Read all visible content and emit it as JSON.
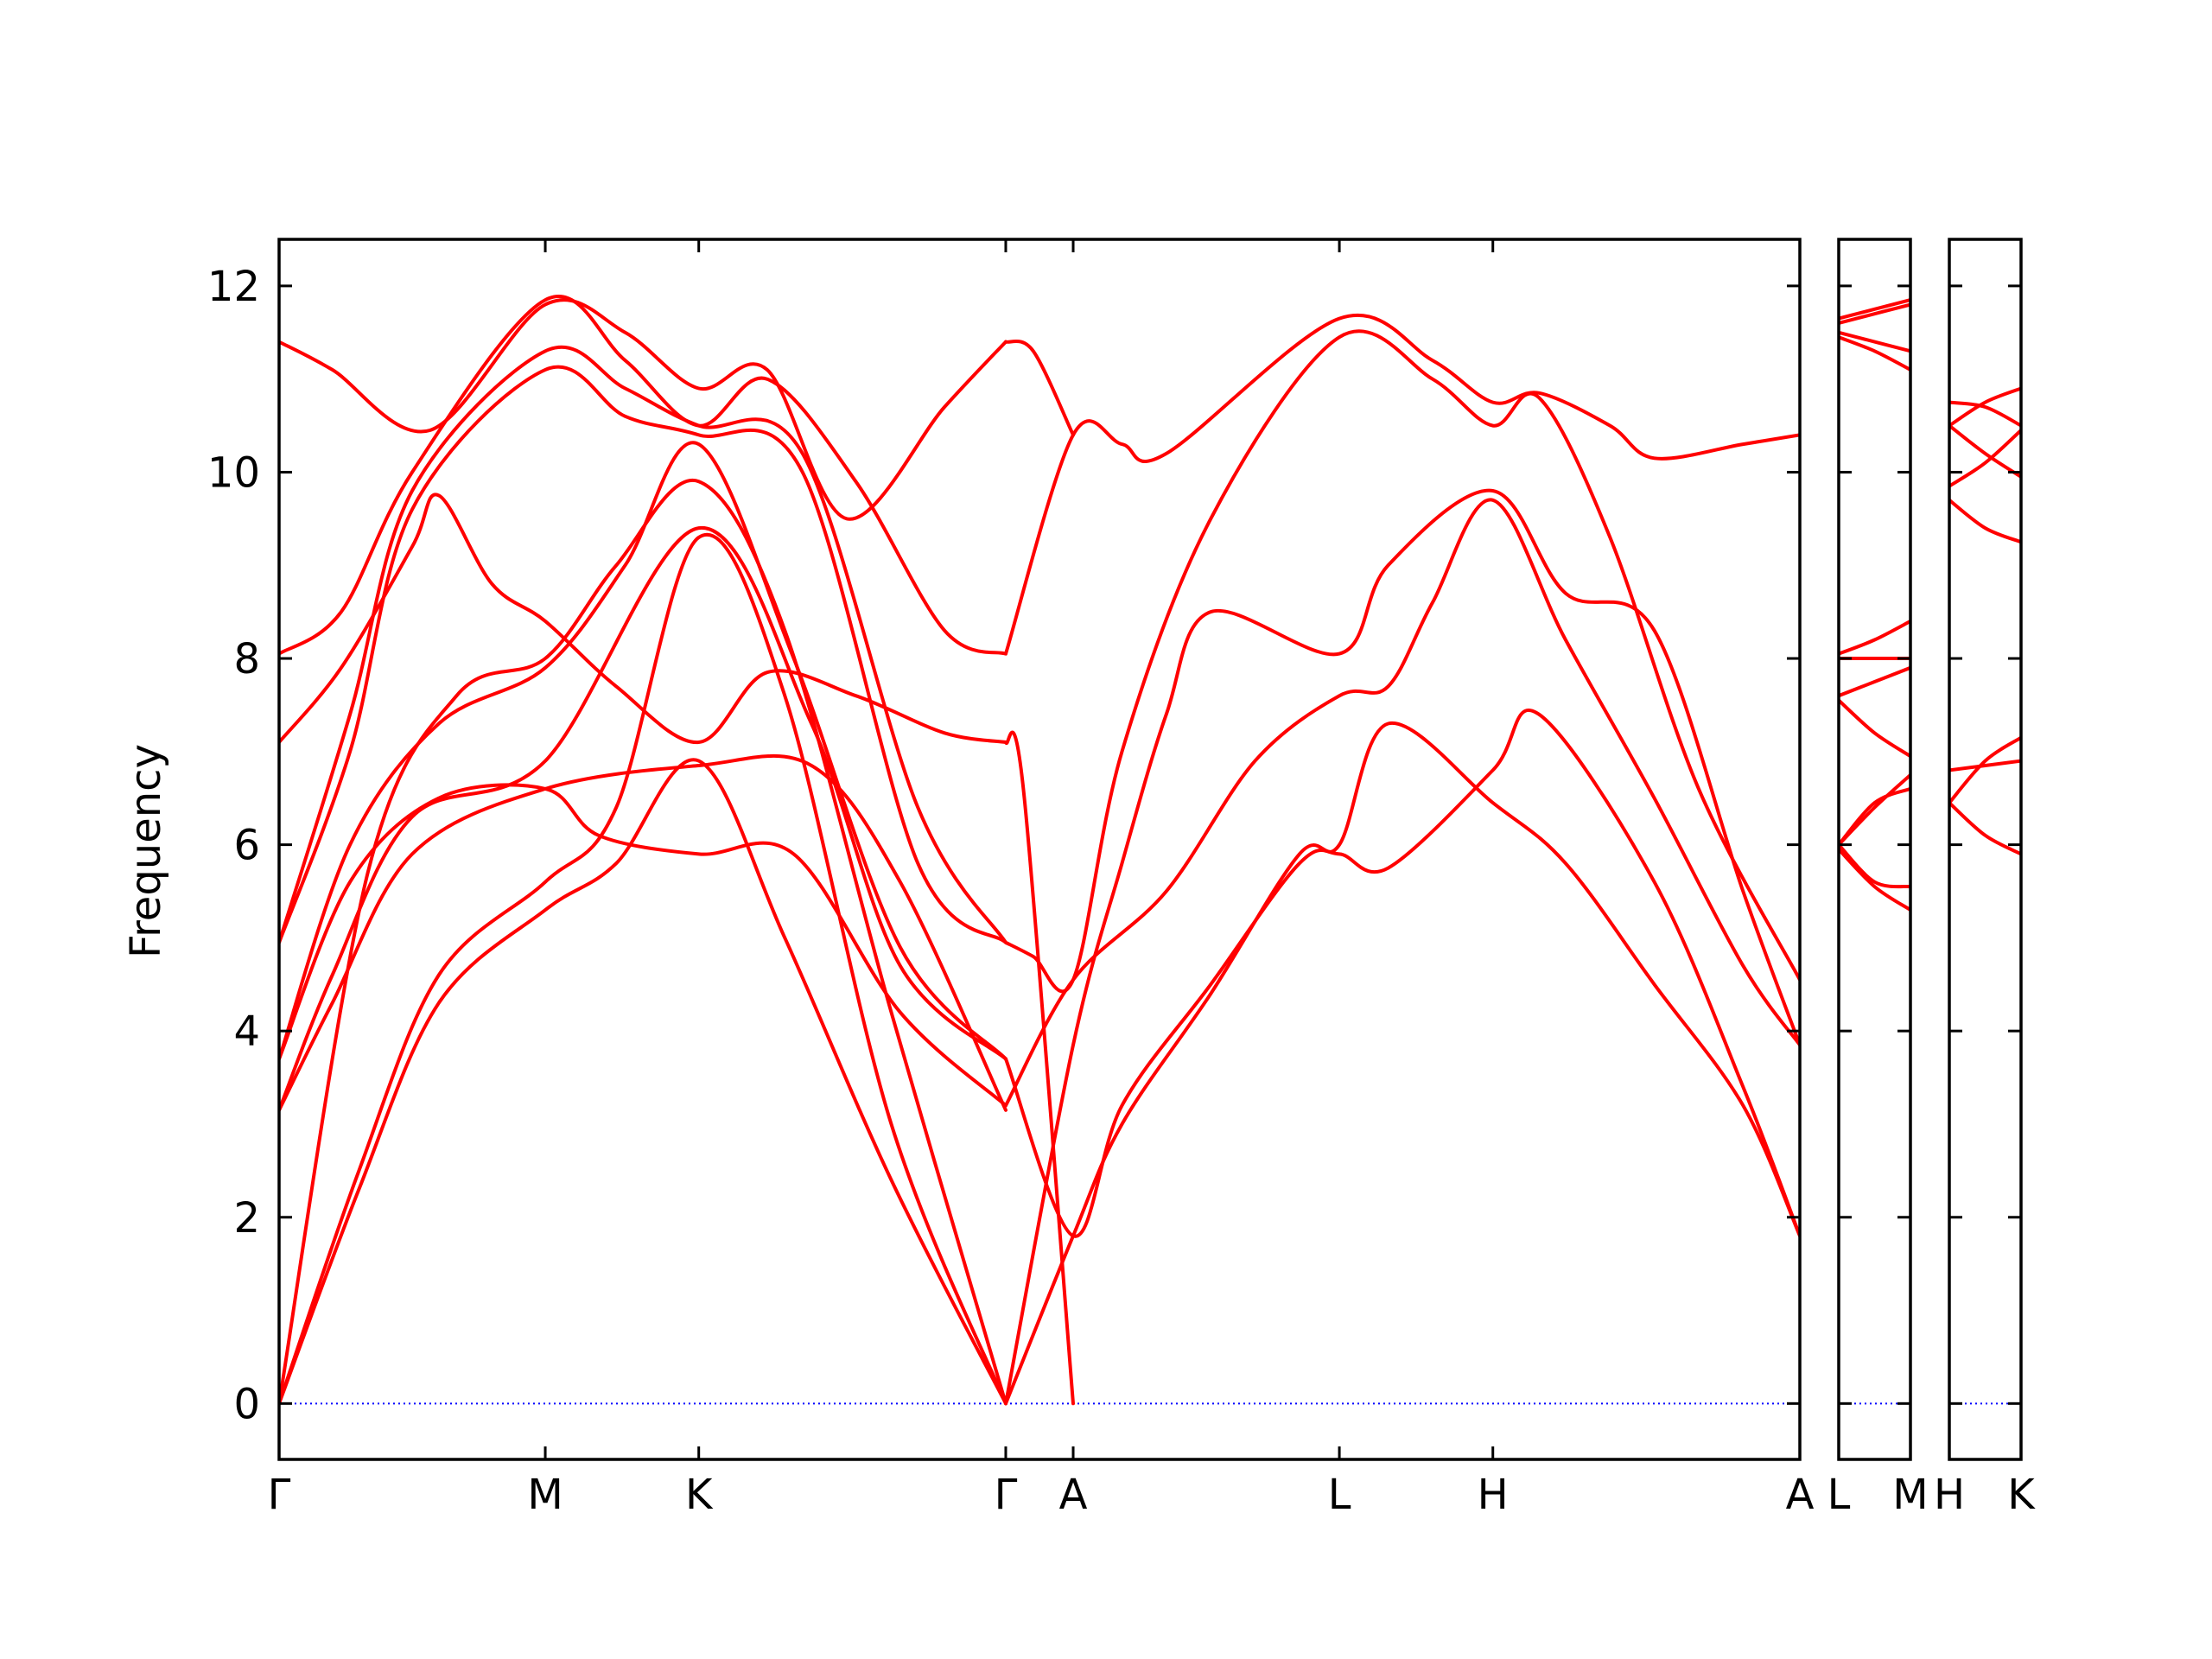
{
  "chart_data": {
    "type": "line",
    "title": "",
    "ylabel": "Frequency",
    "xlabel": "",
    "ylim": [
      -0.6,
      12.5
    ],
    "yticks": [
      0,
      2,
      4,
      6,
      8,
      10,
      12
    ],
    "grid": false,
    "line_color": "#ff0000",
    "zero_line_color": "#0000ff",
    "panels": [
      {
        "id": "main",
        "labels": [
          "Γ",
          "M",
          "K",
          "Γ",
          "A",
          "L",
          "H",
          "A"
        ],
        "ticks": [
          0,
          0.3,
          0.473,
          0.819,
          0.895,
          1.195,
          1.368,
          1.714
        ],
        "xlim": [
          0,
          1.714
        ],
        "series": [
          {
            "x": [
              0,
              0.09,
              0.18,
              0.3,
              0.38,
              0.473,
              0.57,
              0.69,
              0.819
            ],
            "y": [
              0,
              2.3,
              4.3,
              5.3,
              5.8,
              6.9,
              5.0,
              2.4,
              0
            ]
          },
          {
            "x": [
              0,
              0.09,
              0.18,
              0.3,
              0.38,
              0.473,
              0.57,
              0.69,
              0.819
            ],
            "y": [
              0,
              2.5,
              4.6,
              5.6,
              6.4,
              9.3,
              7.6,
              3.0,
              0
            ]
          },
          {
            "x": [
              0,
              0.1,
              0.2,
              0.3,
              0.38,
              0.473,
              0.57,
              0.69,
              0.819
            ],
            "y": [
              0,
              5.7,
              7.6,
              8.0,
              9.0,
              9.9,
              8.3,
              4.2,
              0
            ]
          },
          {
            "x": [
              0,
              0.06,
              0.15,
              0.3,
              0.473,
              0.6,
              0.7,
              0.819
            ],
            "y": [
              3.15,
              4.3,
              5.9,
              6.6,
              6.85,
              6.85,
              5.6,
              3.15
            ]
          },
          {
            "x": [
              0,
              0.06,
              0.15,
              0.3,
              0.473,
              0.6,
              0.7,
              0.819
            ],
            "y": [
              3.15,
              4.6,
              6.3,
              6.9,
              9.4,
              7.3,
              4.7,
              3.7
            ]
          },
          {
            "x": [
              0,
              0.08,
              0.18,
              0.3,
              0.36,
              0.473,
              0.58,
              0.7,
              0.819
            ],
            "y": [
              3.7,
              5.6,
              6.5,
              6.6,
              6.1,
              5.9,
              5.9,
              4.2,
              3.2
            ]
          },
          {
            "x": [
              0,
              0.08,
              0.18,
              0.3,
              0.39,
              0.473,
              0.58,
              0.7,
              0.819
            ],
            "y": [
              3.7,
              6.0,
              7.3,
              7.9,
              9.0,
              10.3,
              8.0,
              4.9,
              3.7
            ]
          },
          {
            "x": [
              0,
              0.08,
              0.15,
              0.3,
              0.39,
              0.473,
              0.59,
              0.72,
              0.819
            ],
            "y": [
              4.95,
              7.0,
              9.6,
              11.1,
              10.6,
              10.4,
              10.0,
              5.8,
              4.95
            ]
          },
          {
            "x": [
              0,
              0.08,
              0.15,
              0.3,
              0.39,
              0.473,
              0.59,
              0.72,
              0.819
            ],
            "y": [
              4.95,
              7.4,
              9.8,
              11.3,
              10.9,
              10.5,
              10.2,
              6.4,
              4.95
            ]
          },
          {
            "x": [
              0,
              0.07,
              0.15,
              0.18,
              0.24,
              0.3,
              0.38,
              0.473,
              0.55,
              0.65,
              0.75,
              0.819
            ],
            "y": [
              7.1,
              7.9,
              9.2,
              9.75,
              8.8,
              8.4,
              7.7,
              7.1,
              7.85,
              7.6,
              7.2,
              7.1
            ]
          },
          {
            "x": [
              0,
              0.07,
              0.15,
              0.3,
              0.39,
              0.473,
              0.55,
              0.65,
              0.75,
              0.819
            ],
            "y": [
              8.05,
              8.5,
              10.0,
              11.85,
              11.2,
              10.5,
              11.0,
              9.9,
              8.3,
              8.05
            ]
          },
          {
            "x": [
              0,
              0.06,
              0.17,
              0.3,
              0.39,
              0.473,
              0.55,
              0.64,
              0.75,
              0.819
            ],
            "y": [
              11.4,
              11.1,
              10.45,
              11.8,
              11.5,
              10.9,
              11.1,
              9.5,
              10.7,
              11.4
            ]
          },
          {
            "x": [
              0.819,
              0.895,
              0.95,
              1.05,
              1.15,
              1.195,
              1.25,
              1.368,
              1.45,
              1.55,
              1.65,
              1.714
            ],
            "y": [
              0,
              1.8,
              3.0,
              4.4,
              5.9,
              6.0,
              7.3,
              6.45,
              5.8,
              4.5,
              3.2,
              1.8
            ]
          },
          {
            "x": [
              0.819,
              0.895,
              0.95,
              1.05,
              1.15,
              1.195,
              1.25,
              1.368,
              1.42,
              1.55,
              1.65,
              1.714
            ],
            "y": [
              3.7,
              1.8,
              3.2,
              4.5,
              5.8,
              5.9,
              5.75,
              6.8,
              7.4,
              5.6,
              3.4,
              1.8
            ]
          },
          {
            "x": [
              0.819,
              0.895,
              1.0,
              1.1,
              1.195,
              1.25,
              1.3,
              1.368,
              1.45,
              1.55,
              1.65,
              1.714
            ],
            "y": [
              3.2,
              4.55,
              5.5,
              6.9,
              7.6,
              7.7,
              8.6,
              9.7,
              8.2,
              6.5,
              4.7,
              3.85
            ]
          },
          {
            "x": [
              0.819,
              0.895,
              0.95,
              1.0,
              1.05,
              1.195,
              1.25,
              1.368,
              1.45,
              1.55,
              1.65,
              1.714
            ],
            "y": [
              0,
              3.85,
              5.8,
              7.4,
              8.5,
              8.05,
              9.0,
              9.8,
              8.7,
              8.3,
              5.5,
              3.85
            ]
          },
          {
            "x": [
              0.819,
              0.85,
              0.895,
              0.95,
              1.05,
              1.195,
              1.3,
              1.368,
              1.42,
              1.5,
              1.6,
              1.714
            ],
            "y": [
              4.95,
              4.8,
              4.55,
              7.0,
              9.5,
              11.45,
              11.0,
              10.5,
              10.8,
              9.3,
              6.6,
              4.55
            ]
          },
          {
            "x": [
              0.819,
              0.895,
              0.95,
              1.0,
              1.195,
              1.3,
              1.368,
              1.42,
              1.5,
              1.55,
              1.65,
              1.714
            ],
            "y": [
              8.05,
              10.4,
              10.3,
              10.2,
              11.65,
              11.2,
              10.75,
              10.85,
              10.5,
              10.15,
              10.3,
              10.4
            ]
          },
          {
            "x": [
              0.819,
              0.84,
              0.895
            ],
            "y": [
              7.1,
              6.5,
              0
            ]
          },
          {
            "x": [
              0.819,
              0.85,
              0.895
            ],
            "y": [
              11.4,
              11.3,
              10.4
            ]
          }
        ]
      },
      {
        "id": "L-M",
        "labels": [
          "L",
          "M"
        ],
        "ticks": [
          0,
          0.08
        ],
        "xlim": [
          0,
          0.08
        ],
        "series": [
          {
            "x": [
              0,
              0.04,
              0.08
            ],
            "y": [
              11.65,
              11.75,
              11.85
            ]
          },
          {
            "x": [
              0,
              0.04,
              0.08
            ],
            "y": [
              11.6,
              11.7,
              11.8
            ]
          },
          {
            "x": [
              0,
              0.04,
              0.08
            ],
            "y": [
              11.5,
              11.4,
              11.3
            ]
          },
          {
            "x": [
              0,
              0.04,
              0.08
            ],
            "y": [
              11.45,
              11.3,
              11.1
            ]
          },
          {
            "x": [
              0,
              0.04,
              0.08
            ],
            "y": [
              8.05,
              8.2,
              8.4
            ]
          },
          {
            "x": [
              0,
              0.04,
              0.08
            ],
            "y": [
              8.0,
              8.0,
              8.0
            ]
          },
          {
            "x": [
              0,
              0.04,
              0.08
            ],
            "y": [
              7.6,
              7.75,
              7.9
            ]
          },
          {
            "x": [
              0,
              0.04,
              0.08
            ],
            "y": [
              7.55,
              7.2,
              6.95
            ]
          },
          {
            "x": [
              0,
              0.04,
              0.08
            ],
            "y": [
              6.0,
              6.45,
              6.6
            ]
          },
          {
            "x": [
              0,
              0.04,
              0.08
            ],
            "y": [
              6.0,
              6.4,
              6.75
            ]
          },
          {
            "x": [
              0,
              0.04,
              0.08
            ],
            "y": [
              6.0,
              5.6,
              5.55
            ]
          },
          {
            "x": [
              0,
              0.04,
              0.08
            ],
            "y": [
              5.95,
              5.55,
              5.3
            ]
          }
        ]
      },
      {
        "id": "H-K",
        "labels": [
          "H",
          "K"
        ],
        "ticks": [
          0,
          0.08
        ],
        "xlim": [
          0,
          0.08
        ],
        "series": [
          {
            "x": [
              0,
              0.04,
              0.08
            ],
            "y": [
              10.75,
              10.7,
              10.5
            ]
          },
          {
            "x": [
              0,
              0.04,
              0.08
            ],
            "y": [
              10.5,
              10.75,
              10.9
            ]
          },
          {
            "x": [
              0,
              0.04,
              0.08
            ],
            "y": [
              10.5,
              10.2,
              9.95
            ]
          },
          {
            "x": [
              0,
              0.04,
              0.08
            ],
            "y": [
              9.85,
              10.1,
              10.45
            ]
          },
          {
            "x": [
              0,
              0.04,
              0.08
            ],
            "y": [
              9.7,
              9.4,
              9.25
            ]
          },
          {
            "x": [
              0,
              0.04,
              0.08
            ],
            "y": [
              6.8,
              6.85,
              6.9
            ]
          },
          {
            "x": [
              0,
              0.04,
              0.08
            ],
            "y": [
              6.45,
              6.9,
              7.15
            ]
          },
          {
            "x": [
              0,
              0.04,
              0.08
            ],
            "y": [
              6.45,
              6.1,
              5.9
            ]
          }
        ]
      }
    ]
  }
}
